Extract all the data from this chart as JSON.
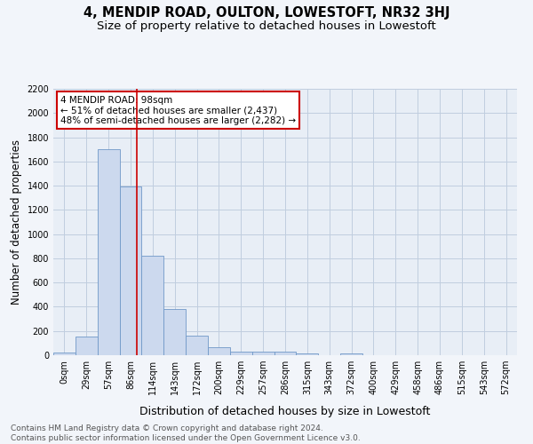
{
  "title": "4, MENDIP ROAD, OULTON, LOWESTOFT, NR32 3HJ",
  "subtitle": "Size of property relative to detached houses in Lowestoft",
  "xlabel": "Distribution of detached houses by size in Lowestoft",
  "ylabel": "Number of detached properties",
  "bar_color": "#ccd9ee",
  "bar_edge_color": "#7098c8",
  "grid_color": "#c0cedf",
  "background_color": "#e8eef6",
  "fig_background_color": "#f2f5fa",
  "bin_labels": [
    "0sqm",
    "29sqm",
    "57sqm",
    "86sqm",
    "114sqm",
    "143sqm",
    "172sqm",
    "200sqm",
    "229sqm",
    "257sqm",
    "286sqm",
    "315sqm",
    "343sqm",
    "372sqm",
    "400sqm",
    "429sqm",
    "458sqm",
    "486sqm",
    "515sqm",
    "543sqm",
    "572sqm"
  ],
  "bar_values": [
    20,
    155,
    1700,
    1395,
    825,
    385,
    165,
    68,
    32,
    28,
    27,
    15,
    0,
    18,
    0,
    0,
    0,
    0,
    0,
    0,
    0
  ],
  "vline_x": 3.27,
  "vline_color": "#cc0000",
  "annotation_text": "4 MENDIP ROAD: 98sqm\n← 51% of detached houses are smaller (2,437)\n48% of semi-detached houses are larger (2,282) →",
  "annotation_box_color": "#ffffff",
  "annotation_box_edge": "#cc0000",
  "ylim": [
    0,
    2200
  ],
  "yticks": [
    0,
    200,
    400,
    600,
    800,
    1000,
    1200,
    1400,
    1600,
    1800,
    2000,
    2200
  ],
  "footnote": "Contains HM Land Registry data © Crown copyright and database right 2024.\nContains public sector information licensed under the Open Government Licence v3.0.",
  "title_fontsize": 10.5,
  "subtitle_fontsize": 9.5,
  "ylabel_fontsize": 8.5,
  "xlabel_fontsize": 9,
  "tick_fontsize": 7,
  "annot_fontsize": 7.5,
  "footnote_fontsize": 6.5
}
